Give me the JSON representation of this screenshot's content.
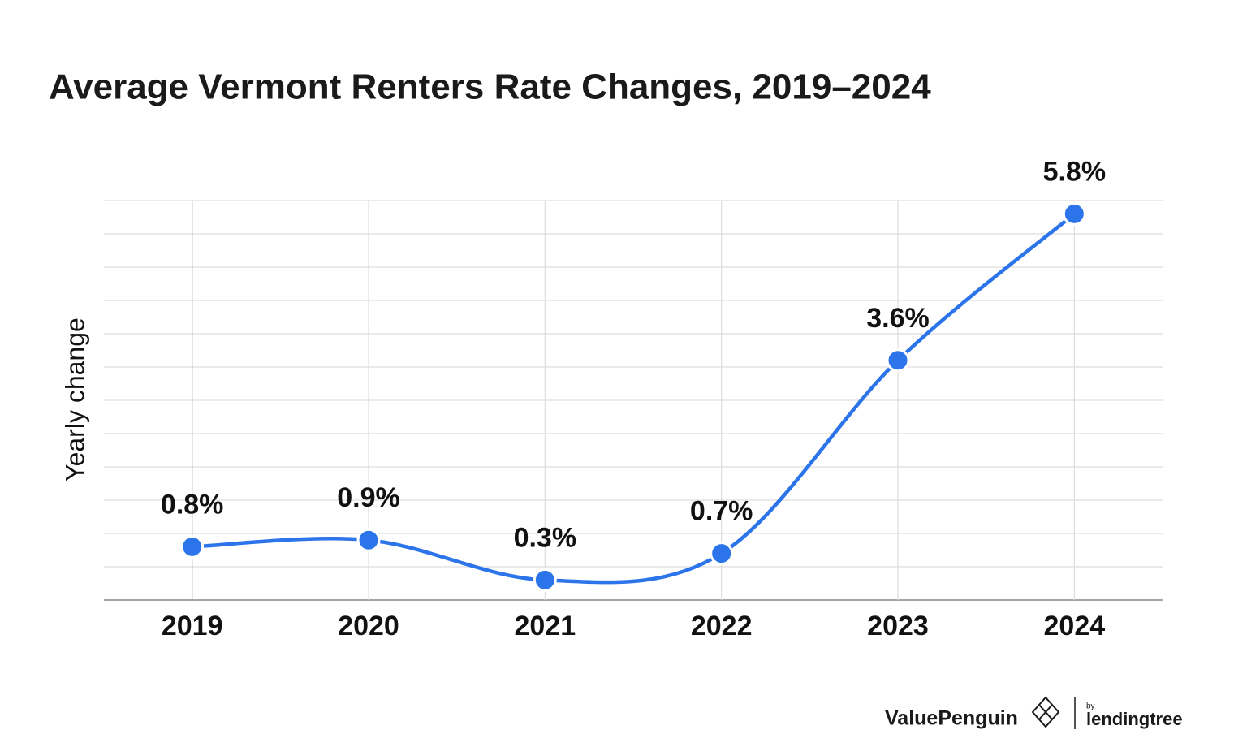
{
  "chart_data": {
    "type": "line",
    "title": "Average Vermont Renters Rate Changes, 2019–2024",
    "y_label": "Yearly change",
    "categories": [
      "2019",
      "2020",
      "2021",
      "2022",
      "2023",
      "2024"
    ],
    "values": [
      0.8,
      0.9,
      0.3,
      0.7,
      3.6,
      5.8
    ],
    "value_labels": [
      "0.8%",
      "0.9%",
      "0.3%",
      "0.7%",
      "3.6%",
      "5.8%"
    ],
    "color": "#2b74ea",
    "ylim": [
      0,
      6
    ],
    "yticks": [
      0,
      0.5,
      1,
      1.5,
      2,
      2.5,
      3,
      3.5,
      4,
      4.5,
      5,
      5.5,
      6
    ],
    "grid": true
  },
  "branding": {
    "brand": "ValuePenguin",
    "by": "by",
    "partner": "lendingtree"
  }
}
